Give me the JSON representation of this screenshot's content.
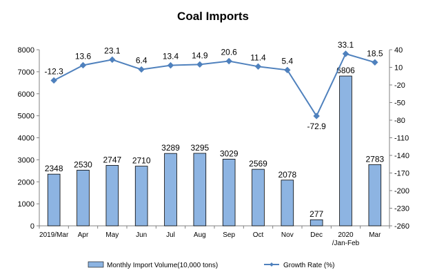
{
  "chart_data": {
    "type": "bar",
    "title": "Coal Imports",
    "categories": [
      "2019/Mar",
      "Apr",
      "May",
      "Jun",
      "Jul",
      "Aug",
      "Sep",
      "Oct",
      "Nov",
      "Dec",
      "2020\n/Jan-Feb",
      "Mar"
    ],
    "series": [
      {
        "name": "Monthly Import Volume(10,000 tons)",
        "type": "bar",
        "axis": "left",
        "color": "#8db4e2",
        "values": [
          2348,
          2530,
          2747,
          2710,
          3289,
          3295,
          3029,
          2569,
          2078,
          277,
          6806,
          2783
        ]
      },
      {
        "name": "Growth Rate (%)",
        "type": "line",
        "axis": "right",
        "color": "#4f81bd",
        "values": [
          -12.3,
          13.6,
          23.1,
          6.4,
          13.4,
          14.9,
          20.6,
          11.4,
          5.4,
          -72.9,
          33.1,
          18.5
        ]
      }
    ],
    "y_left": {
      "min": 0,
      "max": 8000,
      "ticks": [
        0,
        1000,
        2000,
        3000,
        4000,
        5000,
        6000,
        7000,
        8000
      ]
    },
    "y_right": {
      "min": -260,
      "max": 40,
      "ticks": [
        40,
        10,
        -20,
        -50,
        -80,
        -110,
        -140,
        -170,
        -200,
        -230,
        -260
      ]
    },
    "grid": false,
    "legend_position": "bottom"
  }
}
